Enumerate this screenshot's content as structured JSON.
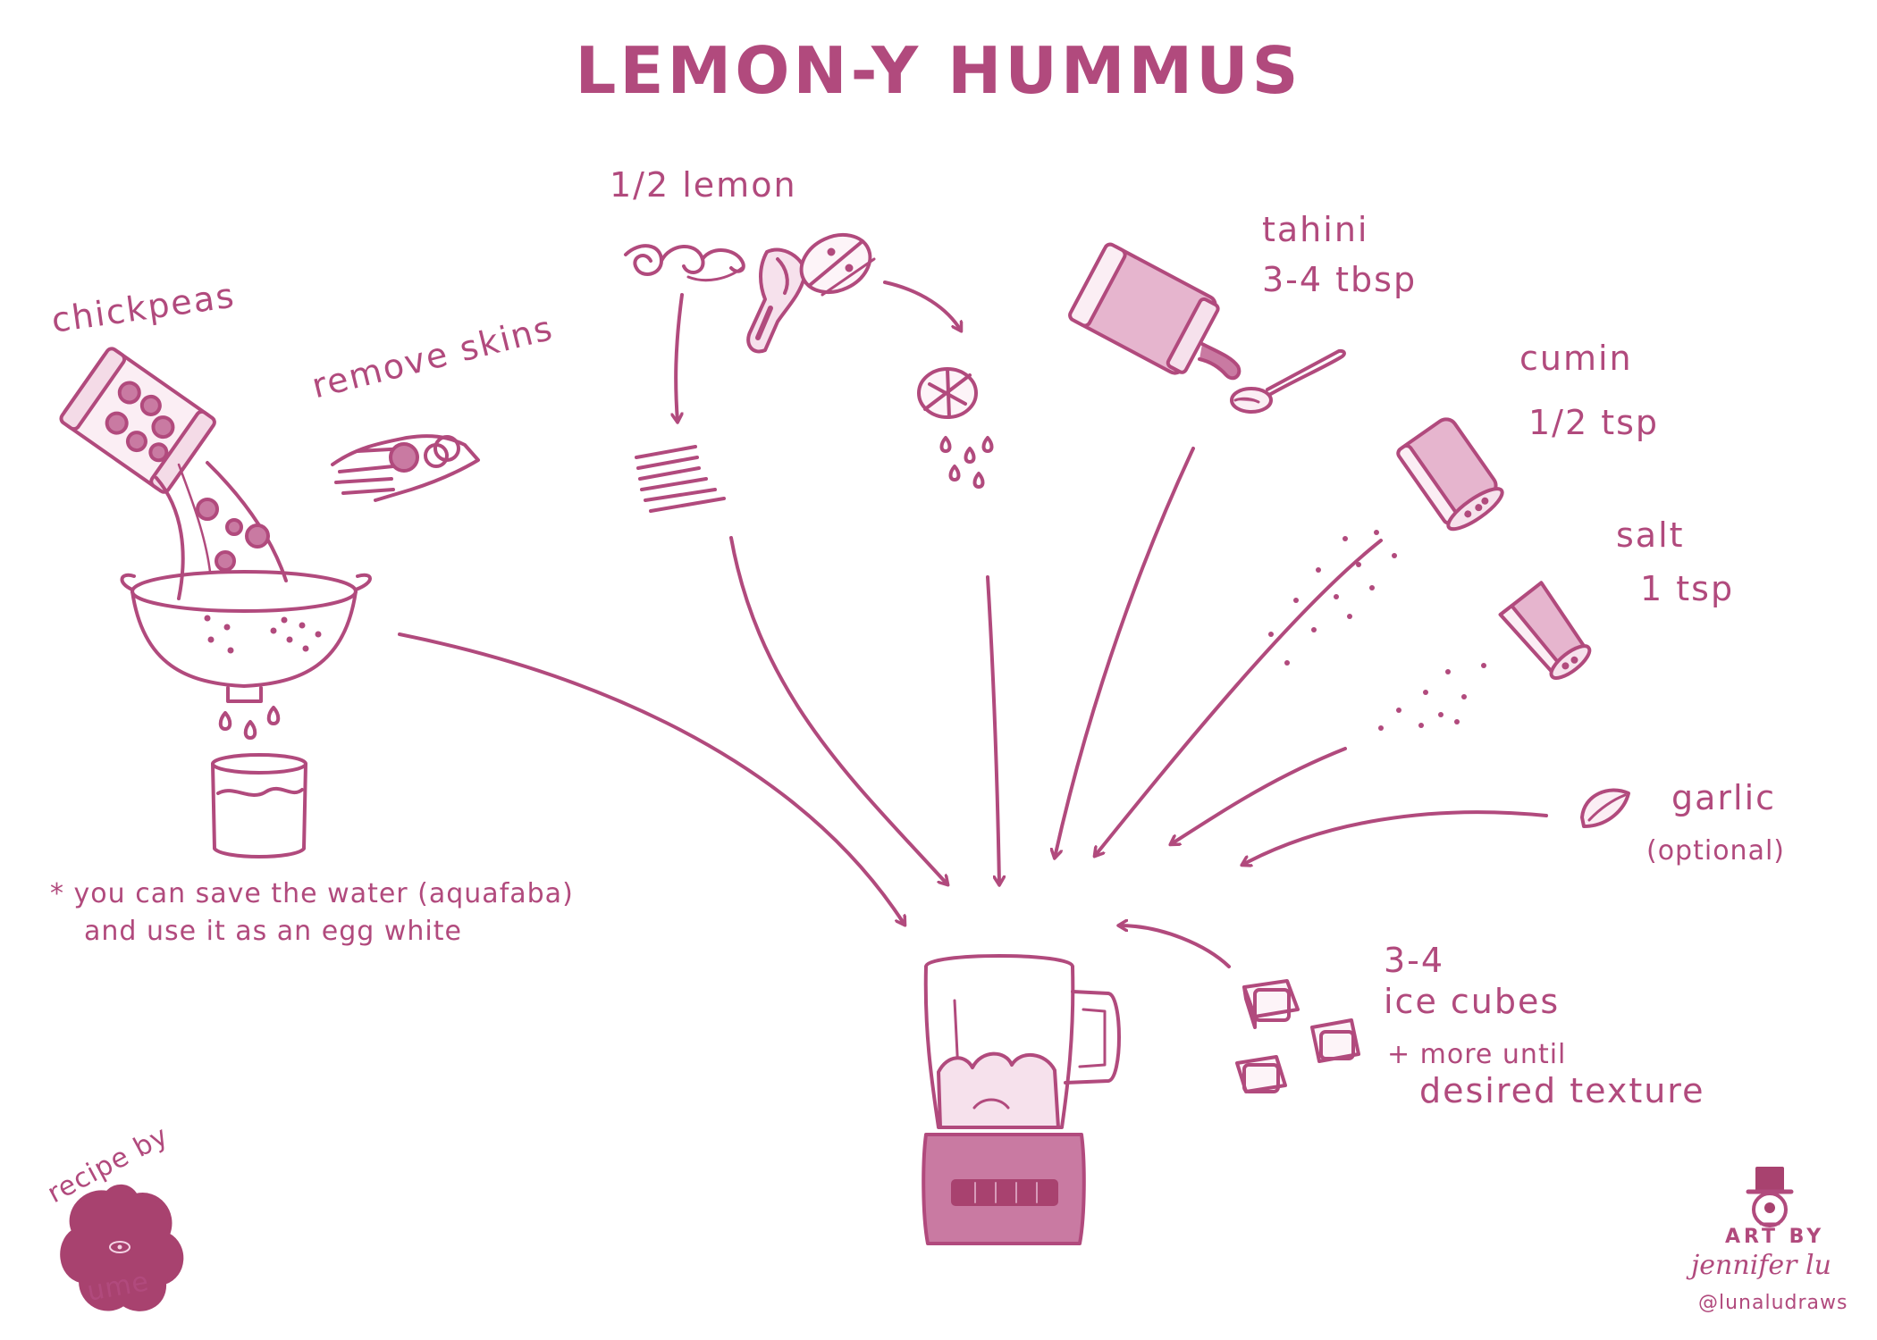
{
  "title": "LEMON-Y HUMMUS",
  "ingredients": {
    "chickpeas": "chickpeas",
    "remove_skins": "remove skins",
    "lemon": "1/2 lemon",
    "tahini_name": "tahini",
    "tahini_amount": "3-4 tbsp",
    "cumin_name": "cumin",
    "cumin_amount": "1/2 tsp",
    "salt_name": "salt",
    "salt_amount": "1 tsp",
    "garlic_name": "garlic",
    "garlic_note": "(optional)",
    "ice_amount": "3-4",
    "ice_name": "ice cubes",
    "ice_note_1": "+ more until",
    "ice_note_2": "desired texture"
  },
  "footnote": {
    "line1": "* you can save the water (aquafaba)",
    "line2": "and use it as an egg white"
  },
  "credits": {
    "recipe_by": "recipe by",
    "recipe_author": "ume",
    "art_by": "ART BY",
    "artist": "jennifer lu",
    "handle": "@lunaludraws"
  },
  "colors": {
    "ink": "#b14a7d",
    "fill": "#c97aa2",
    "fill_dark": "#a8426f",
    "background": "#ffffff"
  }
}
